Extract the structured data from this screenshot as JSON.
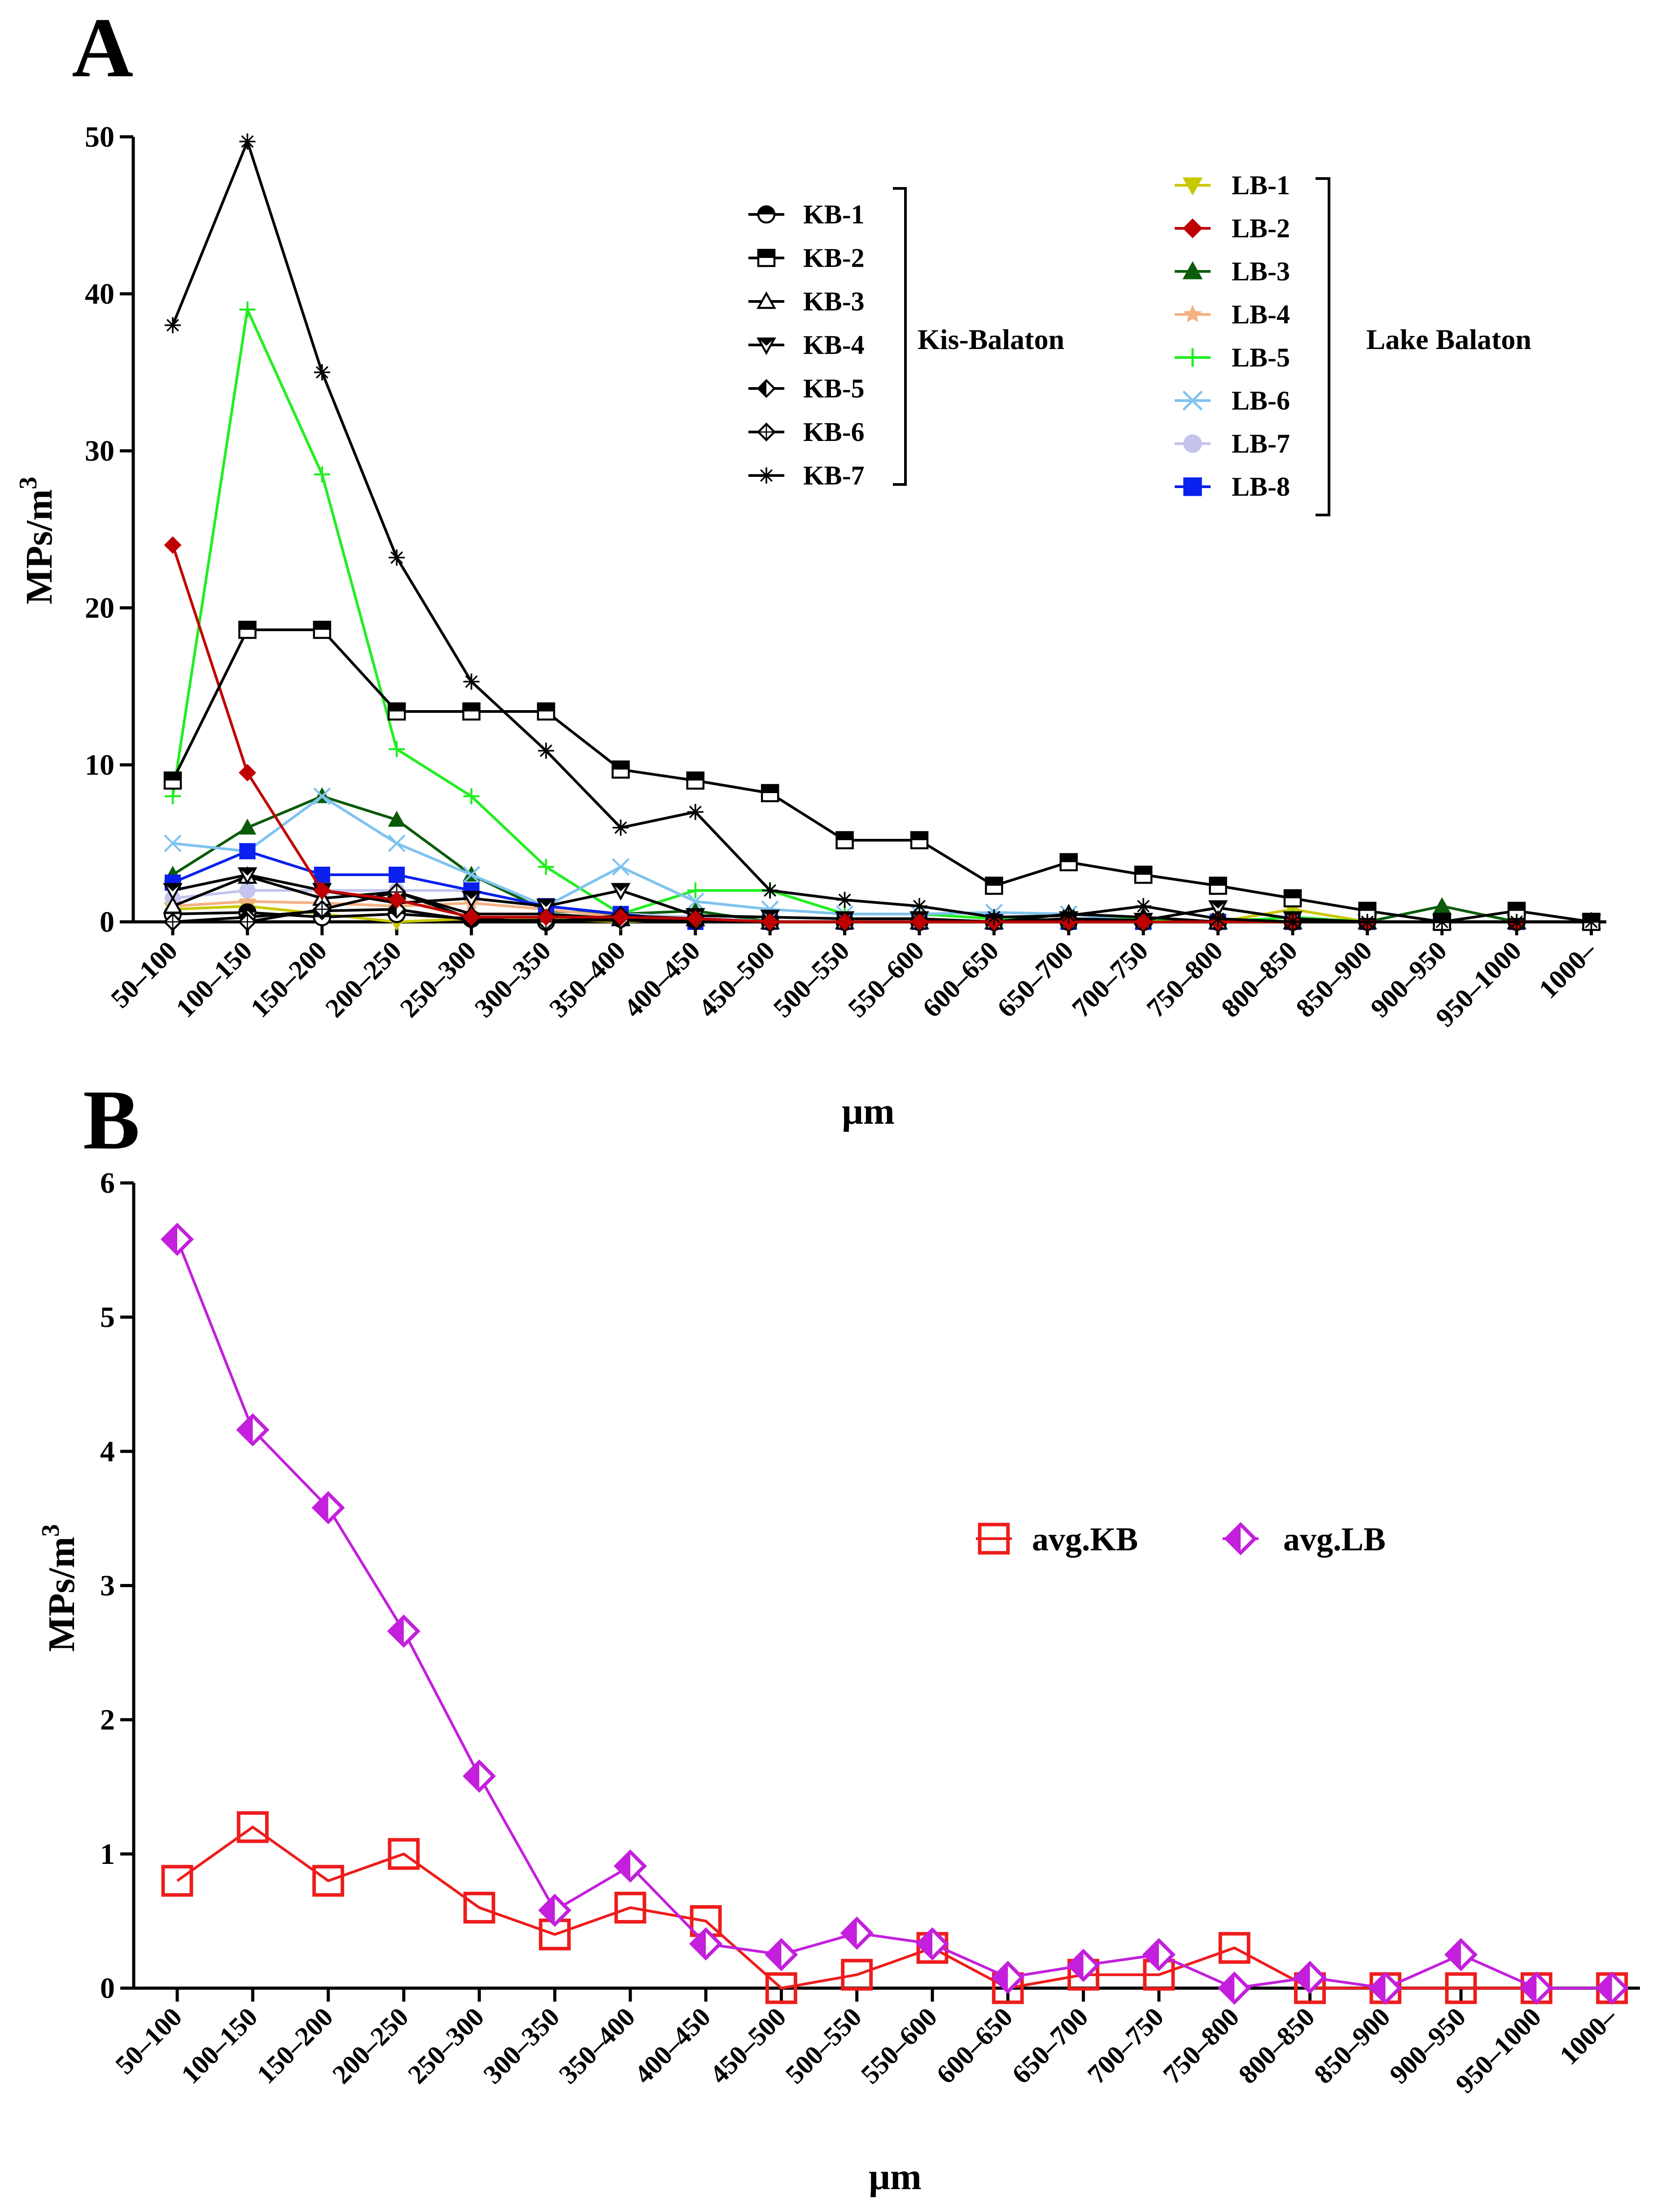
{
  "chart_data": [
    {
      "panel": "A",
      "type": "line",
      "categories": [
        "50–100",
        "100–150",
        "150–200",
        "200–250",
        "250–300",
        "300–350",
        "350–400",
        "400–450",
        "450–500",
        "500–550",
        "550–600",
        "600–650",
        "650–700",
        "700–750",
        "750–800",
        "800–850",
        "850–900",
        "900–950",
        "950–1000",
        "1000–"
      ],
      "xlabel": "μm",
      "ylabel": "MPs/m",
      "ylabel_sup": "3",
      "ylim": [
        0,
        50
      ],
      "yticks": [
        0,
        10,
        20,
        30,
        40,
        50
      ],
      "series": [
        {
          "name": "KB-1",
          "group": "Kis-Balaton",
          "color": "#000000",
          "marker": "circle-half",
          "values": [
            0.5,
            0.6,
            0.3,
            0.5,
            0.2,
            0,
            0.2,
            0.1,
            0,
            0,
            0,
            0,
            0,
            0,
            0,
            0,
            0,
            0,
            0,
            0
          ]
        },
        {
          "name": "KB-2",
          "group": "Kis-Balaton",
          "color": "#000000",
          "marker": "square-half",
          "values": [
            9,
            18.6,
            18.6,
            13.4,
            13.4,
            13.4,
            9.7,
            9,
            8.2,
            5.2,
            5.2,
            2.3,
            3.8,
            3,
            2.3,
            1.5,
            0.7,
            0,
            0.7,
            0
          ]
        },
        {
          "name": "KB-3",
          "group": "Kis-Balaton",
          "color": "#000000",
          "marker": "triangle-open",
          "values": [
            1,
            2.9,
            1.5,
            1.9,
            0.5,
            0.5,
            0.2,
            0.2,
            0,
            0,
            0,
            0,
            0.5,
            0.3,
            0,
            0,
            0,
            0,
            0,
            0
          ]
        },
        {
          "name": "KB-4",
          "group": "Kis-Balaton",
          "color": "#000000",
          "marker": "triangle-down",
          "values": [
            2,
            3,
            2,
            1.2,
            1.5,
            1,
            2,
            0.4,
            0.3,
            0.2,
            0.2,
            0,
            0.2,
            0.1,
            0.9,
            0.2,
            0,
            0,
            0,
            0
          ]
        },
        {
          "name": "KB-5",
          "group": "Kis-Balaton",
          "color": "#000000",
          "marker": "diamond-half",
          "values": [
            0,
            0.3,
            0.7,
            0.8,
            0.1,
            0.1,
            0.1,
            0,
            0,
            0,
            0,
            0,
            0,
            0,
            0,
            0,
            0,
            0,
            0,
            0
          ]
        },
        {
          "name": "KB-6",
          "group": "Kis-Balaton",
          "color": "#000000",
          "marker": "diamond-cross",
          "values": [
            0,
            0,
            0.8,
            1.9,
            0.2,
            0,
            0.4,
            0.2,
            0,
            0,
            0,
            0,
            0,
            0,
            0,
            0,
            0,
            0,
            0,
            0
          ]
        },
        {
          "name": "KB-7",
          "group": "Kis-Balaton",
          "color": "#000000",
          "marker": "asterisk",
          "values": [
            38,
            49.7,
            35,
            23.2,
            15.3,
            10.9,
            6,
            7,
            2,
            1.4,
            1,
            0.3,
            0.4,
            1,
            0.2,
            0,
            0,
            0,
            0,
            0
          ]
        },
        {
          "name": "LB-1",
          "group": "Lake Balaton",
          "color": "#c8c800",
          "marker": "triangle-down-filled",
          "values": [
            0.8,
            1,
            0.5,
            0,
            0.2,
            0.2,
            0,
            0.2,
            0,
            0,
            0,
            0,
            0,
            0,
            0,
            0.8,
            0,
            0,
            0,
            0
          ]
        },
        {
          "name": "LB-2",
          "group": "Lake Balaton",
          "color": "#c00000",
          "marker": "diamond-filled",
          "values": [
            24,
            9.5,
            2,
            1.4,
            0.3,
            0.3,
            0.3,
            0.2,
            0,
            0,
            0,
            0,
            0,
            0,
            0,
            0,
            0,
            0,
            0,
            0
          ]
        },
        {
          "name": "LB-3",
          "group": "Lake Balaton",
          "color": "#0a5c0a",
          "marker": "triangle-filled",
          "values": [
            3,
            6,
            8,
            6.5,
            3,
            0.7,
            0.5,
            0.7,
            0,
            0,
            0,
            0,
            0,
            0,
            0,
            0,
            0,
            1,
            0,
            0
          ]
        },
        {
          "name": "LB-4",
          "group": "Lake Balaton",
          "color": "#f4b183",
          "marker": "star",
          "values": [
            1,
            1.3,
            1.2,
            1,
            1.2,
            0.8,
            0.3,
            0.2,
            0,
            0,
            0,
            0,
            0,
            0,
            0,
            0,
            0,
            0,
            0,
            0
          ]
        },
        {
          "name": "LB-5",
          "group": "Lake Balaton",
          "color": "#22ee22",
          "marker": "plus",
          "values": [
            8,
            39,
            28.5,
            11,
            8,
            3.5,
            0.5,
            2,
            2,
            0.5,
            0.5,
            0.2,
            0.5,
            0.2,
            0,
            0.3,
            0,
            0,
            0,
            0
          ]
        },
        {
          "name": "LB-6",
          "group": "Lake Balaton",
          "color": "#7fc3ee",
          "marker": "cross",
          "values": [
            5,
            4.5,
            8,
            5,
            3,
            1,
            3.5,
            1.3,
            0.8,
            0.5,
            0.5,
            0.6,
            0.5,
            0,
            0,
            0,
            0,
            0,
            0,
            0
          ]
        },
        {
          "name": "LB-7",
          "group": "Lake Balaton",
          "color": "#c4c4ee",
          "marker": "circle-filled",
          "values": [
            1.5,
            2,
            2,
            2,
            2,
            1,
            0.5,
            0.3,
            0,
            0,
            0,
            0,
            0,
            0,
            0,
            0,
            0,
            0,
            0,
            0
          ]
        },
        {
          "name": "LB-8",
          "group": "Lake Balaton",
          "color": "#0a20ee",
          "marker": "square-filled",
          "values": [
            2.5,
            4.5,
            3,
            3,
            2,
            1,
            0.5,
            0,
            0,
            0,
            0,
            0,
            0,
            0,
            0,
            0,
            0,
            0,
            0,
            0
          ]
        }
      ],
      "groups": [
        "Kis-Balaton",
        "Lake Balaton"
      ]
    },
    {
      "panel": "B",
      "type": "line",
      "categories": [
        "50–100",
        "100–150",
        "150–200",
        "200–250",
        "250–300",
        "300–350",
        "350–400",
        "400–450",
        "450–500",
        "500–550",
        "550–600",
        "600–650",
        "650–700",
        "700–750",
        "750–800",
        "800–850",
        "850–900",
        "900–950",
        "950–1000",
        "1000–"
      ],
      "xlabel": "μm",
      "ylabel": "MPs/m",
      "ylabel_sup": "3",
      "ylim": [
        0,
        6
      ],
      "yticks": [
        0,
        1,
        2,
        3,
        4,
        5,
        6
      ],
      "series": [
        {
          "name": "avg.KB",
          "color": "#ee1c1c",
          "marker": "square-open",
          "values": [
            0.8,
            1.2,
            0.8,
            1.0,
            0.6,
            0.4,
            0.6,
            0.5,
            0,
            0.1,
            0.3,
            0,
            0.1,
            0.1,
            0.3,
            0,
            0,
            0,
            0,
            0
          ]
        },
        {
          "name": "avg.LB",
          "color": "#c31fdc",
          "marker": "diamond-half",
          "values": [
            5.58,
            4.16,
            3.58,
            2.66,
            1.58,
            0.58,
            0.91,
            0.33,
            0.25,
            0.41,
            0.33,
            0.08,
            0.17,
            0.25,
            0,
            0.08,
            0,
            0.25,
            0,
            0
          ]
        }
      ]
    }
  ]
}
